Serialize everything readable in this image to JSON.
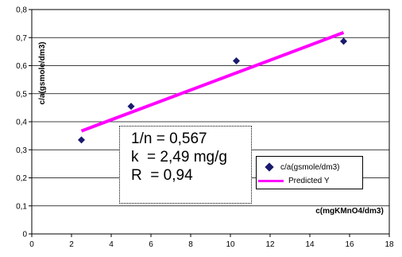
{
  "chart_data": {
    "type": "scatter",
    "xlabel": "c(mgKMnO4/dm3)",
    "ylabel": "c/a(gsmole/dm3)",
    "xlim": [
      0,
      18
    ],
    "ylim": [
      0,
      0.8
    ],
    "x_ticks": [
      "0",
      "2",
      "4",
      "6",
      "8",
      "10",
      "12",
      "14",
      "16",
      "18"
    ],
    "y_ticks": [
      "0",
      "0,1",
      "0,2",
      "0,3",
      "0,4",
      "0,5",
      "0,6",
      "0,7",
      "0,8"
    ],
    "grid": true,
    "legend_position": "bottom-right",
    "series": [
      {
        "name": "c/a(gsmole/dm3)",
        "kind": "scatter",
        "color": "#1a1a6e",
        "points": [
          {
            "x": 2.5,
            "y": 0.335
          },
          {
            "x": 5.0,
            "y": 0.455
          },
          {
            "x": 10.3,
            "y": 0.617
          },
          {
            "x": 15.7,
            "y": 0.687
          }
        ]
      },
      {
        "name": "Predicted Y",
        "kind": "line",
        "color": "#ff00ff",
        "points": [
          {
            "x": 2.5,
            "y": 0.367
          },
          {
            "x": 15.7,
            "y": 0.718
          }
        ]
      }
    ],
    "annotation": [
      "1/n = 0,567",
      "k  = 2,49 mg/g",
      "R  = 0,94"
    ]
  }
}
